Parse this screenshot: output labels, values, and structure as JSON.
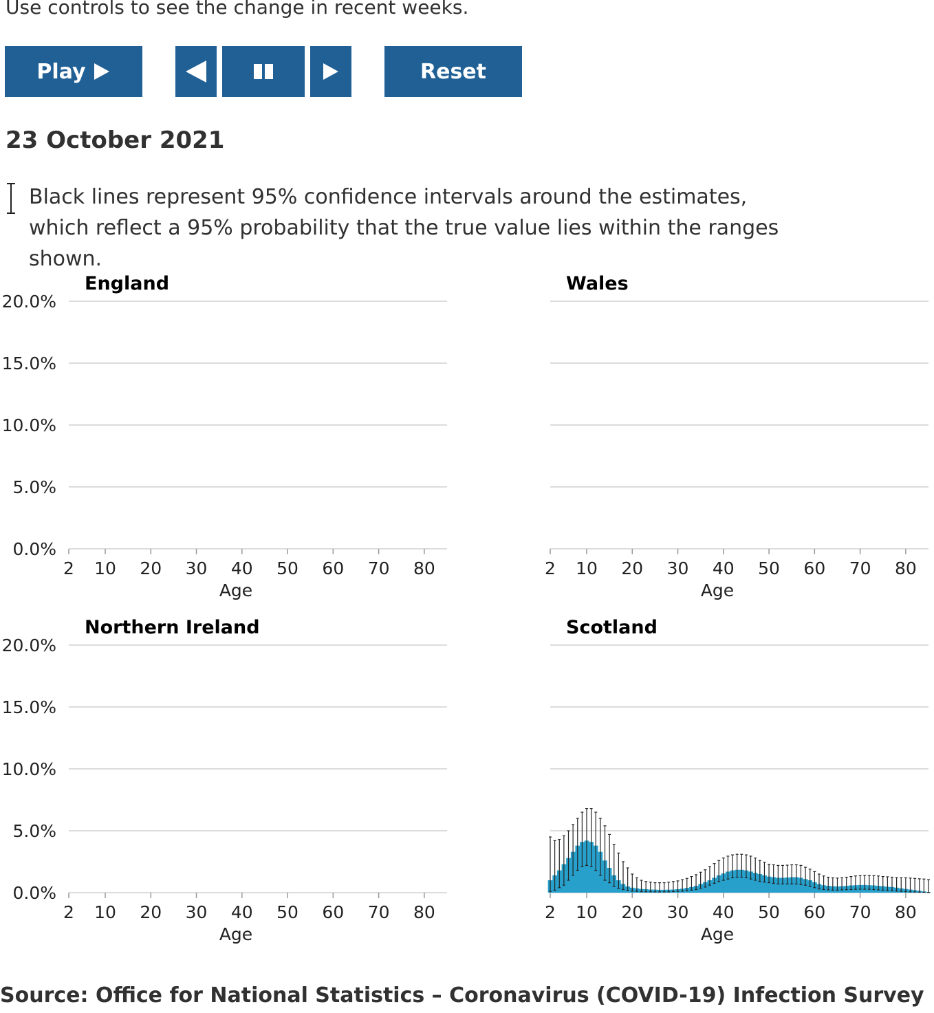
{
  "intro_text": "Use controls to see the change in recent weeks.",
  "controls": {
    "play_label": "Play",
    "reset_label": "Reset"
  },
  "date_label": "23 October 2021",
  "note_text": "Black lines represent 95% confidence intervals around the estimates, which reflect a 95% probability that the true value lies within the ranges shown.",
  "source_text": "Source: Office for National Statistics – Coronavirus (COVID-19) Infection Survey",
  "colors": {
    "bar": "#27a0cc",
    "button": "#206095",
    "grid": "#d0d0d0",
    "ci": "#222222"
  },
  "chart_data": [
    {
      "type": "area",
      "title": "England",
      "xlabel": "Age",
      "ylabel": "",
      "xlim": [
        2,
        85
      ],
      "ylim": [
        0,
        20
      ],
      "y_ticks": [
        "0.0%",
        "5.0%",
        "10.0%",
        "15.0%",
        "20.0%"
      ],
      "x_ticks": [
        "2",
        "10",
        "20",
        "30",
        "40",
        "50",
        "60",
        "70",
        "80"
      ],
      "grid": true,
      "age": [],
      "estimate": [],
      "lower": [],
      "upper": []
    },
    {
      "type": "area",
      "title": "Wales",
      "xlabel": "Age",
      "ylabel": "",
      "xlim": [
        2,
        85
      ],
      "ylim": [
        0,
        20
      ],
      "y_ticks": [],
      "x_ticks": [
        "2",
        "10",
        "20",
        "30",
        "40",
        "50",
        "60",
        "70",
        "80"
      ],
      "grid": true,
      "age": [],
      "estimate": [],
      "lower": [],
      "upper": []
    },
    {
      "type": "area",
      "title": "Northern Ireland",
      "xlabel": "Age",
      "ylabel": "",
      "xlim": [
        2,
        85
      ],
      "ylim": [
        0,
        20
      ],
      "y_ticks": [
        "0.0%",
        "5.0%",
        "10.0%",
        "15.0%",
        "20.0%"
      ],
      "x_ticks": [
        "2",
        "10",
        "20",
        "30",
        "40",
        "50",
        "60",
        "70",
        "80"
      ],
      "grid": true,
      "age": [],
      "estimate": [],
      "lower": [],
      "upper": []
    },
    {
      "type": "area",
      "title": "Scotland",
      "xlabel": "Age",
      "ylabel": "",
      "xlim": [
        2,
        85
      ],
      "ylim": [
        0,
        20
      ],
      "y_ticks": [],
      "x_ticks": [
        "2",
        "10",
        "20",
        "30",
        "40",
        "50",
        "60",
        "70",
        "80"
      ],
      "grid": true,
      "age": [
        2,
        3,
        4,
        5,
        6,
        7,
        8,
        9,
        10,
        11,
        12,
        13,
        14,
        15,
        16,
        17,
        18,
        19,
        20,
        21,
        22,
        23,
        24,
        25,
        26,
        27,
        28,
        29,
        30,
        31,
        32,
        33,
        34,
        35,
        36,
        37,
        38,
        39,
        40,
        41,
        42,
        43,
        44,
        45,
        46,
        47,
        48,
        49,
        50,
        51,
        52,
        53,
        54,
        55,
        56,
        57,
        58,
        59,
        60,
        61,
        62,
        63,
        64,
        65,
        66,
        67,
        68,
        69,
        70,
        71,
        72,
        73,
        74,
        75,
        76,
        77,
        78,
        79,
        80,
        81,
        82,
        83,
        84,
        85
      ],
      "estimate": [
        1.0,
        1.4,
        1.8,
        2.3,
        2.8,
        3.3,
        3.8,
        4.1,
        4.2,
        4.1,
        3.8,
        3.3,
        2.6,
        2.0,
        1.4,
        1.0,
        0.7,
        0.5,
        0.4,
        0.35,
        0.3,
        0.28,
        0.25,
        0.24,
        0.23,
        0.23,
        0.24,
        0.25,
        0.28,
        0.32,
        0.38,
        0.45,
        0.55,
        0.7,
        0.85,
        1.0,
        1.2,
        1.4,
        1.55,
        1.7,
        1.8,
        1.85,
        1.85,
        1.8,
        1.7,
        1.6,
        1.5,
        1.4,
        1.3,
        1.25,
        1.2,
        1.2,
        1.22,
        1.25,
        1.25,
        1.2,
        1.1,
        1.0,
        0.85,
        0.7,
        0.6,
        0.55,
        0.52,
        0.5,
        0.52,
        0.55,
        0.58,
        0.6,
        0.62,
        0.62,
        0.6,
        0.58,
        0.55,
        0.52,
        0.48,
        0.45,
        0.4,
        0.35,
        0.3,
        0.25,
        0.2,
        0.15,
        0.1,
        0.05
      ],
      "lower": [
        0.1,
        0.2,
        0.4,
        0.6,
        1.0,
        1.4,
        1.8,
        2.1,
        2.2,
        2.1,
        1.8,
        1.4,
        1.0,
        0.8,
        0.5,
        0.35,
        0.25,
        0.18,
        0.12,
        0.1,
        0.08,
        0.07,
        0.07,
        0.06,
        0.06,
        0.06,
        0.07,
        0.08,
        0.1,
        0.12,
        0.15,
        0.2,
        0.25,
        0.35,
        0.45,
        0.6,
        0.75,
        0.9,
        1.0,
        1.1,
        1.2,
        1.25,
        1.25,
        1.2,
        1.1,
        1.0,
        0.9,
        0.85,
        0.8,
        0.75,
        0.7,
        0.7,
        0.7,
        0.7,
        0.7,
        0.65,
        0.6,
        0.5,
        0.4,
        0.3,
        0.25,
        0.22,
        0.2,
        0.2,
        0.22,
        0.24,
        0.25,
        0.27,
        0.28,
        0.28,
        0.27,
        0.25,
        0.22,
        0.2,
        0.17,
        0.15,
        0.12,
        0.1,
        0.08,
        0.06,
        0.05,
        0.04,
        0.03,
        0.01
      ],
      "upper": [
        4.5,
        4.2,
        4.3,
        4.6,
        5.0,
        5.5,
        6.0,
        6.5,
        6.8,
        6.8,
        6.5,
        6.0,
        5.4,
        4.7,
        3.9,
        3.2,
        2.5,
        2.0,
        1.5,
        1.2,
        1.0,
        0.9,
        0.85,
        0.8,
        0.8,
        0.8,
        0.85,
        0.9,
        0.95,
        1.05,
        1.15,
        1.3,
        1.45,
        1.65,
        1.85,
        2.1,
        2.35,
        2.6,
        2.8,
        2.95,
        3.05,
        3.1,
        3.1,
        3.05,
        2.95,
        2.8,
        2.6,
        2.45,
        2.3,
        2.25,
        2.2,
        2.2,
        2.22,
        2.25,
        2.25,
        2.2,
        2.05,
        1.9,
        1.7,
        1.5,
        1.35,
        1.25,
        1.2,
        1.18,
        1.2,
        1.25,
        1.3,
        1.35,
        1.38,
        1.4,
        1.4,
        1.38,
        1.35,
        1.3,
        1.28,
        1.25,
        1.22,
        1.2,
        1.2,
        1.18,
        1.15,
        1.12,
        1.1,
        1.05
      ]
    }
  ]
}
